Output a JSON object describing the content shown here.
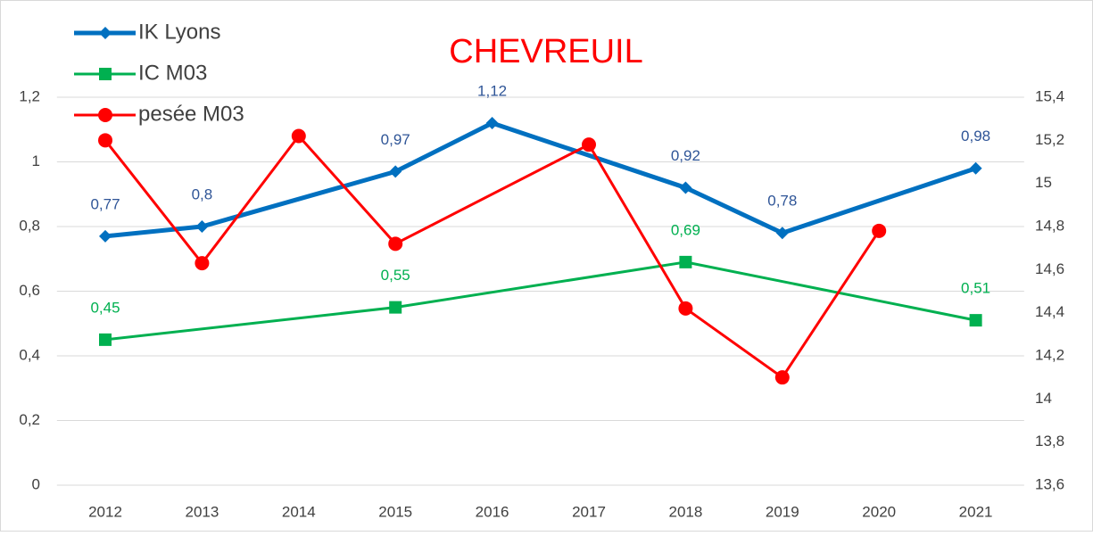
{
  "chart_data": {
    "type": "line",
    "title": "CHEVREUIL",
    "xlim": [
      2011.5,
      2021.5
    ],
    "xticks": [
      2012,
      2013,
      2014,
      2015,
      2016,
      2017,
      2018,
      2019,
      2020,
      2021
    ],
    "ylim": [
      0,
      1.2
    ],
    "yticks": [
      0,
      {
        "value": 0.2,
        "label": "0,2"
      },
      {
        "value": 0.4,
        "label": "0,4"
      },
      {
        "value": 0.6,
        "label": "0,6"
      },
      {
        "value": 0.8,
        "label": "0,8"
      },
      1,
      {
        "value": 1.2,
        "label": "1,2"
      }
    ],
    "y2lim": [
      13.6,
      15.4
    ],
    "y2ticks": [
      {
        "value": 13.6,
        "label": "13,6"
      },
      {
        "value": 13.8,
        "label": "13,8"
      },
      14,
      {
        "value": 14.2,
        "label": "14,2"
      },
      {
        "value": 14.4,
        "label": "14,4"
      },
      {
        "value": 14.6,
        "label": "14,6"
      },
      {
        "value": 14.8,
        "label": "14,8"
      },
      15,
      {
        "value": 15.2,
        "label": "15,2"
      },
      {
        "value": 15.4,
        "label": "15,4"
      }
    ],
    "grid": true,
    "legend": "top-left",
    "series": [
      {
        "name": "IK Lyons",
        "color": "#0070c0",
        "marker": "diamond",
        "label_color": "#2f5597",
        "x": [
          2012,
          2013,
          2015,
          2016,
          2018,
          2019,
          2021
        ],
        "values": [
          0.77,
          0.8,
          0.97,
          1.12,
          0.92,
          0.78,
          0.98
        ],
        "value_labels": [
          "0,77",
          "0,8",
          "0,97",
          "1,12",
          "0,92",
          "0,78",
          "0,98"
        ]
      },
      {
        "name": "IC M03",
        "color": "#00b050",
        "marker": "square",
        "label_color": "#00b050",
        "x": [
          2012,
          2015,
          2018,
          2021
        ],
        "values": [
          0.45,
          0.55,
          0.69,
          0.51
        ],
        "value_labels": [
          "0,45",
          "0,55",
          "0,69",
          "0,51"
        ]
      },
      {
        "name": "pesée M03",
        "color": "#ff0000",
        "marker": "circle",
        "axis": "y2",
        "x": [
          2012,
          2013,
          2014,
          2015,
          2017,
          2018,
          2019,
          2020
        ],
        "values": [
          15.2,
          14.63,
          15.22,
          14.72,
          15.18,
          14.42,
          14.1,
          14.78
        ]
      }
    ]
  }
}
